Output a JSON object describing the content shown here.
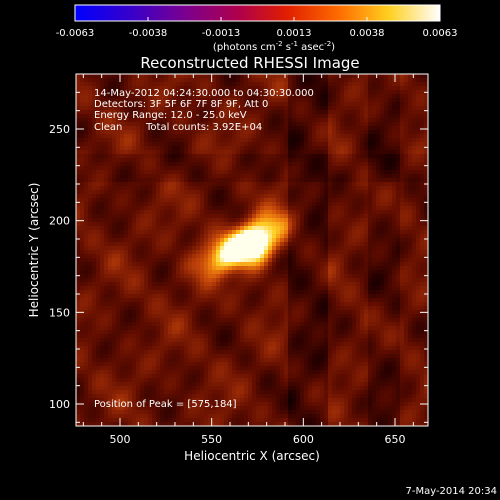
{
  "chart_data": {
    "type": "heatmap",
    "title": "Reconstructed RHESSI Image",
    "xlabel": "Heliocentric X (arcsec)",
    "ylabel": "Heliocentric Y (arcsec)",
    "xlim": [
      476,
      668
    ],
    "ylim": [
      88,
      280
    ],
    "x_ticks": [
      500,
      550,
      600,
      650
    ],
    "y_ticks": [
      100,
      150,
      200,
      250
    ],
    "colorbar": {
      "ticks": [
        "-0.0063",
        "-0.0038",
        "-0.0013",
        "0.0013",
        "0.0038",
        "0.0063"
      ],
      "range": [
        -0.0063,
        0.0063
      ],
      "colormap": "blue-purple-red-yellow-white"
    },
    "units": {
      "prefix": "(photons cm",
      "exp1": "-2",
      "mid1": " s",
      "exp2": "-1",
      "mid2": " asec",
      "exp3": "-2",
      "suffix": ")"
    },
    "annotations": {
      "time_range": "14-May-2012 04:24:30.000 to 04:30:30.000",
      "detectors": "Detectors: 3F 5F 6F 7F 8F 9F, Att 0",
      "energy": "Energy Range: 12.0 - 25.0 keV",
      "method": "Clean",
      "counts": "Total counts: 3.92E+04",
      "peak": "Position of Peak = [575,184]"
    },
    "source": {
      "peak_x": 575,
      "peak_y": 184,
      "peak_value": 0.0063
    }
  },
  "footer": {
    "timestamp": "7-May-2014 20:34"
  }
}
